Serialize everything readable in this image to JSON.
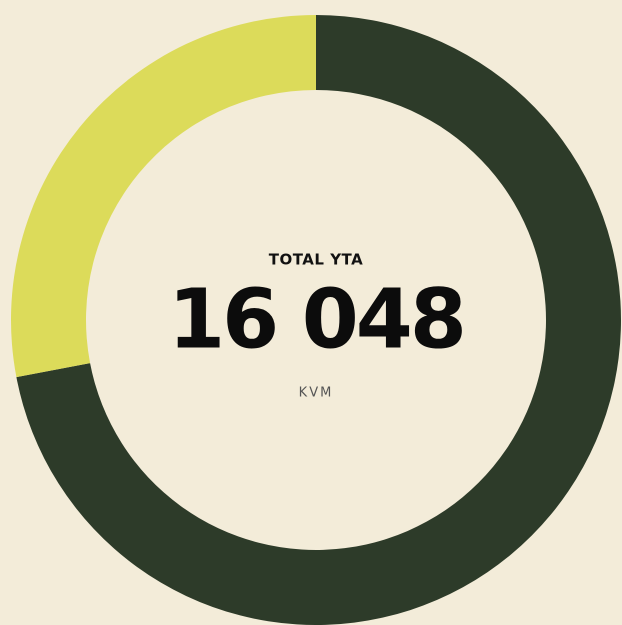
{
  "chart_data": {
    "type": "donut",
    "center_label": "TOTAL YTA",
    "center_value": "16 048",
    "center_unit": "KVM",
    "values": [
      72,
      28
    ],
    "colors": [
      "#2d3b29",
      "#dcdb5a"
    ]
  }
}
